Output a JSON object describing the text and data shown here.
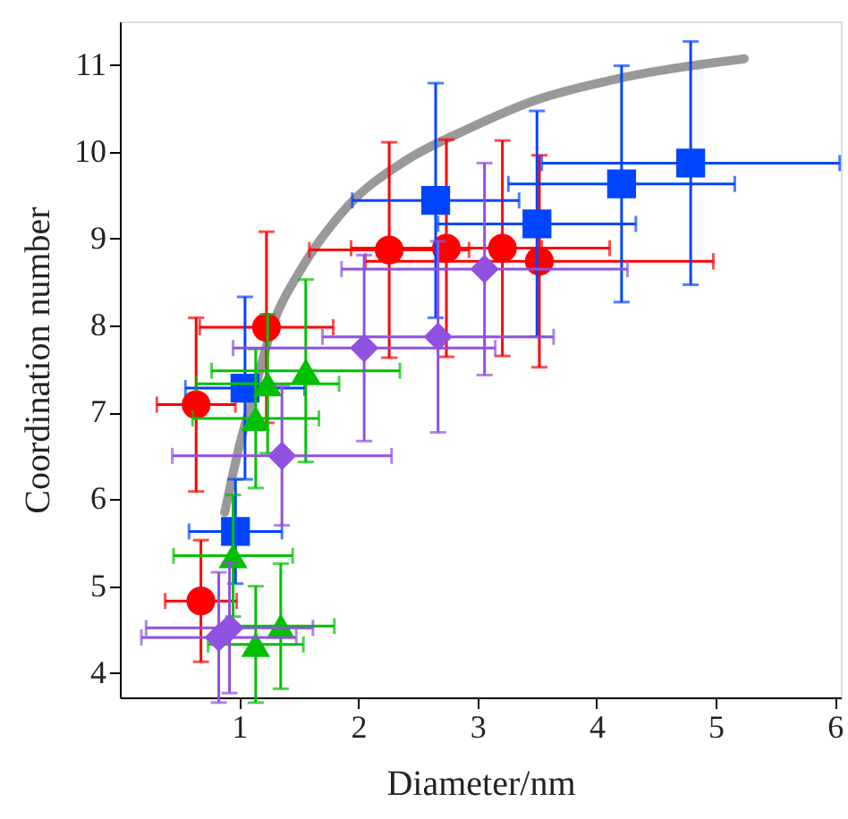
{
  "chart_data": {
    "type": "scatter",
    "xlabel": "Diameter/nm",
    "ylabel": "Coordination number",
    "xlim": [
      0,
      6.05
    ],
    "ylim": [
      3.72,
      11.5
    ],
    "xticks": [
      1,
      2,
      3,
      4,
      5,
      6
    ],
    "yticks": [
      4,
      5,
      6,
      7,
      8,
      9,
      10,
      11
    ],
    "grid": false,
    "series": [
      {
        "type": "line",
        "color": "#999999",
        "marker": "none",
        "line_style": "solid",
        "x": [
          0.88,
          1.0,
          1.1,
          1.3,
          1.5,
          1.91,
          2.4,
          2.9,
          3.5,
          4.14,
          5.24
        ],
        "values": [
          5.85,
          6.6,
          7.1,
          8.07,
          8.6,
          9.37,
          9.9,
          10.25,
          10.6,
          10.83,
          11.07
        ]
      },
      {
        "color": "#ff0000",
        "marker": "circle",
        "x": [
          0.68,
          0.64,
          1.23,
          2.26,
          2.74,
          3.21,
          3.52
        ],
        "values": [
          4.83,
          7.09,
          7.98,
          8.87,
          8.89,
          8.89,
          8.74
        ],
        "errors": [
          0.7,
          1.0,
          1.1,
          1.24,
          1.25,
          1.24,
          1.22
        ],
        "xerrors": [
          0.3,
          0.33,
          0.56,
          0.67,
          0.8,
          0.9,
          1.46
        ]
      },
      {
        "color": "#0044ff",
        "marker": "square",
        "x": [
          1.05,
          0.97,
          2.65,
          3.5,
          4.21,
          4.79
        ],
        "values": [
          7.28,
          5.63,
          9.44,
          9.17,
          9.63,
          9.87
        ],
        "errors": [
          1.05,
          0.6,
          1.35,
          1.3,
          1.36,
          1.4
        ],
        "xerrors": [
          0.5,
          0.39,
          0.7,
          0.83,
          0.95,
          1.25
        ]
      },
      {
        "color": "#00c000",
        "marker": "triangle",
        "x": [
          1.24,
          1.56,
          1.14,
          0.95,
          1.14,
          1.35
        ],
        "values": [
          7.33,
          7.48,
          6.93,
          5.35,
          4.33,
          4.54
        ],
        "errors": [
          0.8,
          1.05,
          0.8,
          0.7,
          0.67,
          0.72
        ],
        "xerrors": [
          0.6,
          0.79,
          0.53,
          0.5,
          0.4,
          0.45
        ]
      },
      {
        "color": "#9050e0",
        "marker": "diamond",
        "x": [
          2.05,
          2.67,
          3.06,
          1.36,
          0.92,
          0.83
        ],
        "values": [
          7.74,
          7.87,
          8.65,
          6.5,
          4.52,
          4.41
        ],
        "errors": [
          1.07,
          1.1,
          1.22,
          0.8,
          0.75,
          0.75
        ],
        "xerrors": [
          1.1,
          0.97,
          1.2,
          0.92,
          0.7,
          0.65
        ]
      }
    ]
  }
}
